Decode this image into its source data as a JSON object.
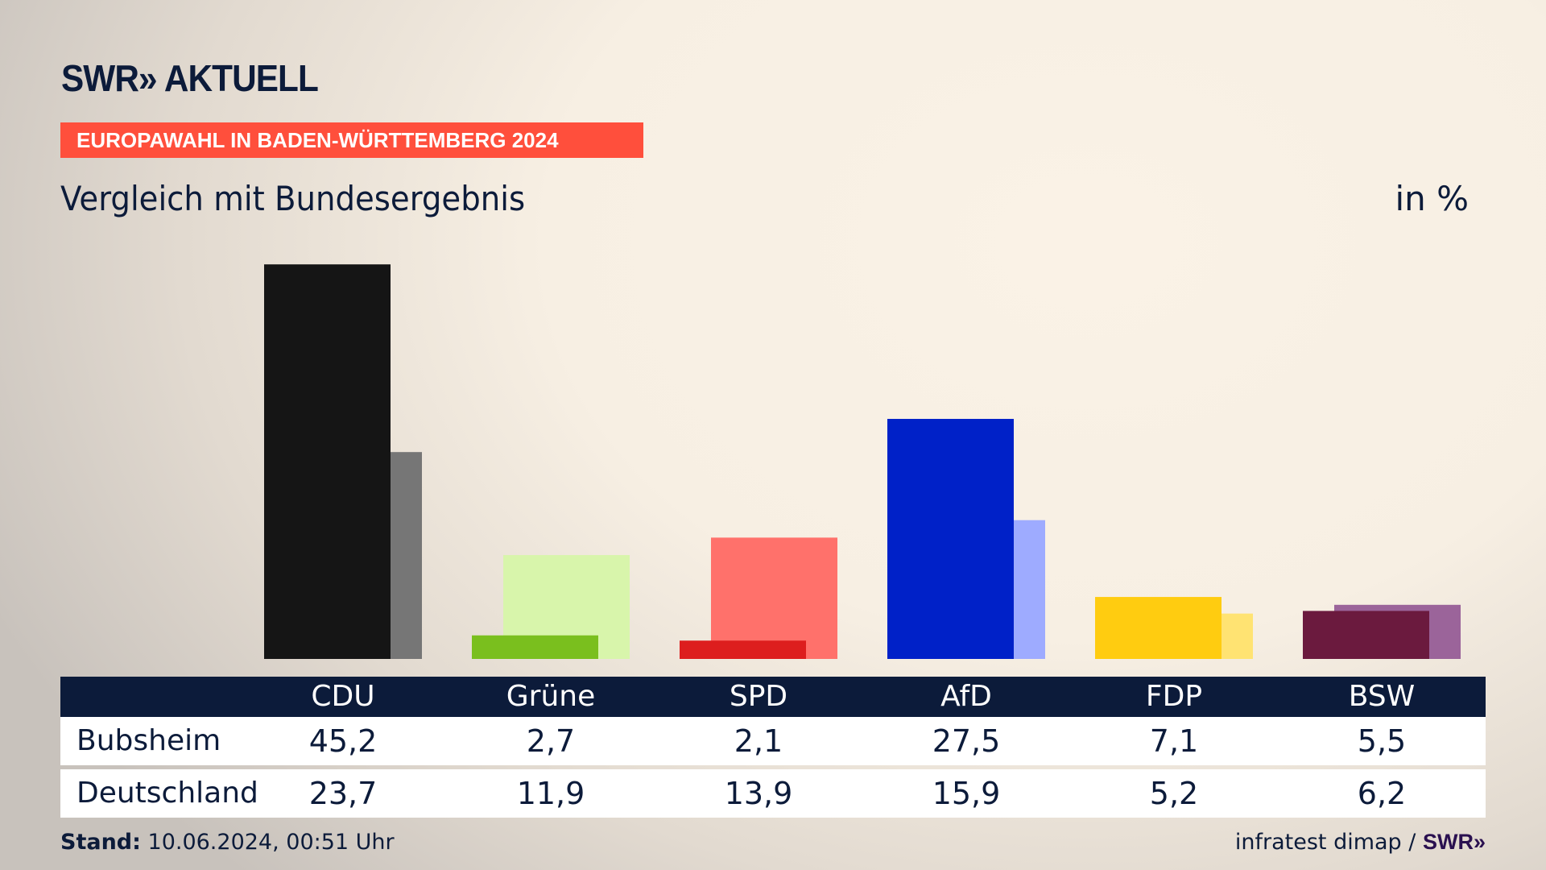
{
  "header": {
    "logo": "SWR» AKTUELL",
    "banner": "EUROPAWAHL IN BADEN-WÜRTTEMBERG 2024",
    "subtitle": "Vergleich mit Bundesergebnis",
    "unit": "in %"
  },
  "chart_data": {
    "type": "bar",
    "title": "Vergleich mit Bundesergebnis",
    "ylabel": "in %",
    "ylim": [
      0,
      45.2
    ],
    "categories": [
      "CDU",
      "Grüne",
      "SPD",
      "AfD",
      "FDP",
      "BSW"
    ],
    "series": [
      {
        "name": "Bubsheim",
        "values": [
          45.2,
          2.7,
          2.1,
          27.5,
          7.1,
          5.5
        ],
        "display": [
          "45,2",
          "2,7",
          "2,1",
          "27,5",
          "7,1",
          "5,5"
        ],
        "colors": [
          "#151515",
          "#7abf1e",
          "#dd1e1e",
          "#0021c8",
          "#ffcc10",
          "#6b1a3e"
        ]
      },
      {
        "name": "Deutschland",
        "values": [
          23.7,
          11.9,
          13.9,
          15.9,
          5.2,
          6.2
        ],
        "display": [
          "23,7",
          "11,9",
          "13,9",
          "15,9",
          "5,2",
          "6,2"
        ],
        "colors": [
          "#767676",
          "#d8f5ab",
          "#ff716b",
          "#9eabff",
          "#ffe372",
          "#9b649a"
        ]
      }
    ]
  },
  "footer": {
    "stand_label": "Stand:",
    "stand_value": "10.06.2024, 00:51 Uhr",
    "source": "infratest dimap /",
    "source_logo": "SWR»"
  }
}
